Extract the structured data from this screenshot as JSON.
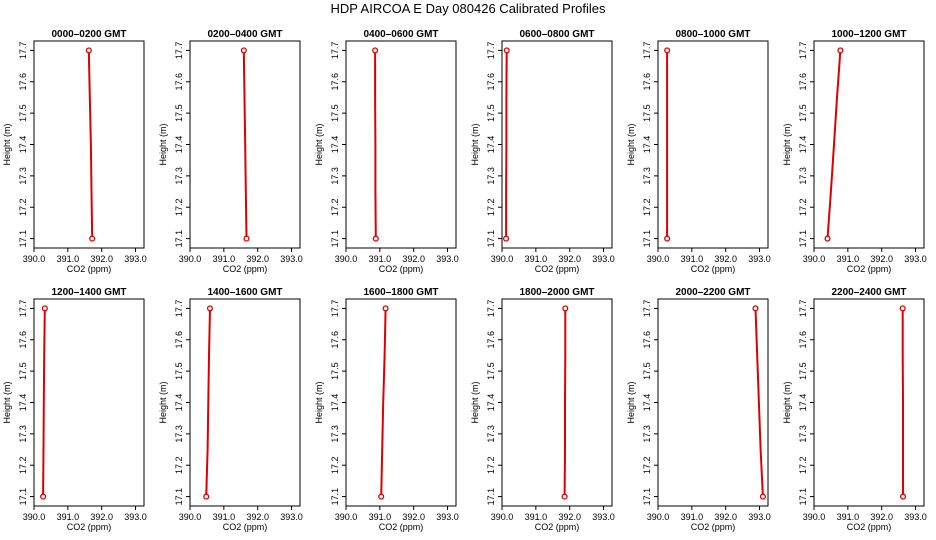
{
  "title": "HDP  AIRCOA E   Day 080426   Calibrated Profiles",
  "colors": {
    "series": "#dd0000",
    "axis": "#000000"
  },
  "chart_data": [
    {
      "type": "line",
      "title": "0000–0200 GMT",
      "xlabel": "CO2 (ppm)",
      "ylabel": "Height (m)",
      "x_ticks": [
        "390.0",
        "391.0",
        "392.0",
        "393.0"
      ],
      "y_ticks": [
        "17.1",
        "17.2",
        "17.3",
        "17.4",
        "17.5",
        "17.6",
        "17.7"
      ],
      "xlim": [
        390.0,
        393.25
      ],
      "ylim": [
        17.07,
        17.73
      ],
      "series": [
        {
          "x": [
            391.62,
            391.65,
            391.68,
            391.7,
            391.72
          ],
          "y": [
            17.7,
            17.55,
            17.4,
            17.25,
            17.1
          ]
        }
      ]
    },
    {
      "type": "line",
      "title": "0200–0400 GMT",
      "xlabel": "CO2 (ppm)",
      "ylabel": "Height (m)",
      "x_ticks": [
        "390.0",
        "391.0",
        "392.0",
        "393.0"
      ],
      "y_ticks": [
        "17.1",
        "17.2",
        "17.3",
        "17.4",
        "17.5",
        "17.6",
        "17.7"
      ],
      "xlim": [
        390.0,
        393.25
      ],
      "ylim": [
        17.07,
        17.73
      ],
      "series": [
        {
          "x": [
            391.59,
            391.61,
            391.63,
            391.65,
            391.67
          ],
          "y": [
            17.7,
            17.55,
            17.4,
            17.25,
            17.1
          ]
        }
      ]
    },
    {
      "type": "line",
      "title": "0400–0600 GMT",
      "xlabel": "CO2 (ppm)",
      "ylabel": "Height (m)",
      "x_ticks": [
        "390.0",
        "391.0",
        "392.0",
        "393.0"
      ],
      "y_ticks": [
        "17.1",
        "17.2",
        "17.3",
        "17.4",
        "17.5",
        "17.6",
        "17.7"
      ],
      "xlim": [
        390.0,
        393.25
      ],
      "ylim": [
        17.07,
        17.73
      ],
      "series": [
        {
          "x": [
            390.86,
            390.86,
            390.87,
            390.87,
            390.88
          ],
          "y": [
            17.7,
            17.55,
            17.4,
            17.25,
            17.1
          ]
        }
      ]
    },
    {
      "type": "line",
      "title": "0600–0800 GMT",
      "xlabel": "CO2 (ppm)",
      "ylabel": "Height (m)",
      "x_ticks": [
        "390.0",
        "391.0",
        "392.0",
        "393.0"
      ],
      "y_ticks": [
        "17.1",
        "17.2",
        "17.3",
        "17.4",
        "17.5",
        "17.6",
        "17.7"
      ],
      "xlim": [
        390.0,
        393.25
      ],
      "ylim": [
        17.07,
        17.73
      ],
      "series": [
        {
          "x": [
            390.14,
            390.13,
            390.13,
            390.12,
            390.12
          ],
          "y": [
            17.7,
            17.55,
            17.4,
            17.25,
            17.1
          ]
        }
      ]
    },
    {
      "type": "line",
      "title": "0800–1000 GMT",
      "xlabel": "CO2 (ppm)",
      "ylabel": "Height (m)",
      "x_ticks": [
        "390.0",
        "391.0",
        "392.0",
        "393.0"
      ],
      "y_ticks": [
        "17.1",
        "17.2",
        "17.3",
        "17.4",
        "17.5",
        "17.6",
        "17.7"
      ],
      "xlim": [
        390.0,
        393.25
      ],
      "ylim": [
        17.07,
        17.73
      ],
      "series": [
        {
          "x": [
            390.27,
            390.27,
            390.27,
            390.27,
            390.27
          ],
          "y": [
            17.7,
            17.55,
            17.4,
            17.25,
            17.1
          ]
        }
      ]
    },
    {
      "type": "line",
      "title": "1000–1200 GMT",
      "xlabel": "CO2 (ppm)",
      "ylabel": "Height (m)",
      "x_ticks": [
        "390.0",
        "391.0",
        "392.0",
        "393.0"
      ],
      "y_ticks": [
        "17.1",
        "17.2",
        "17.3",
        "17.4",
        "17.5",
        "17.6",
        "17.7"
      ],
      "xlim": [
        390.0,
        393.25
      ],
      "ylim": [
        17.07,
        17.73
      ],
      "series": [
        {
          "x": [
            390.78,
            390.68,
            390.59,
            390.5,
            390.4
          ],
          "y": [
            17.7,
            17.55,
            17.4,
            17.25,
            17.1
          ]
        }
      ]
    },
    {
      "type": "line",
      "title": "1200–1400 GMT",
      "xlabel": "CO2 (ppm)",
      "ylabel": "Height (m)",
      "x_ticks": [
        "390.0",
        "391.0",
        "392.0",
        "393.0"
      ],
      "y_ticks": [
        "17.1",
        "17.2",
        "17.3",
        "17.4",
        "17.5",
        "17.6",
        "17.7"
      ],
      "xlim": [
        390.0,
        393.25
      ],
      "ylim": [
        17.07,
        17.73
      ],
      "series": [
        {
          "x": [
            390.32,
            390.3,
            390.29,
            390.28,
            390.27
          ],
          "y": [
            17.7,
            17.55,
            17.4,
            17.25,
            17.1
          ]
        }
      ]
    },
    {
      "type": "line",
      "title": "1400–1600 GMT",
      "xlabel": "CO2 (ppm)",
      "ylabel": "Height (m)",
      "x_ticks": [
        "390.0",
        "391.0",
        "392.0",
        "393.0"
      ],
      "y_ticks": [
        "17.1",
        "17.2",
        "17.3",
        "17.4",
        "17.5",
        "17.6",
        "17.7"
      ],
      "xlim": [
        390.0,
        393.25
      ],
      "ylim": [
        17.07,
        17.73
      ],
      "series": [
        {
          "x": [
            390.59,
            390.56,
            390.54,
            390.52,
            390.48
          ],
          "y": [
            17.7,
            17.55,
            17.4,
            17.25,
            17.1
          ]
        }
      ]
    },
    {
      "type": "line",
      "title": "1600–1800 GMT",
      "xlabel": "CO2 (ppm)",
      "ylabel": "Height (m)",
      "x_ticks": [
        "390.0",
        "391.0",
        "392.0",
        "393.0"
      ],
      "y_ticks": [
        "17.1",
        "17.2",
        "17.3",
        "17.4",
        "17.5",
        "17.6",
        "17.7"
      ],
      "xlim": [
        390.0,
        393.25
      ],
      "ylim": [
        17.07,
        17.73
      ],
      "series": [
        {
          "x": [
            391.17,
            391.14,
            391.1,
            391.07,
            391.04
          ],
          "y": [
            17.7,
            17.55,
            17.4,
            17.25,
            17.1
          ]
        }
      ]
    },
    {
      "type": "line",
      "title": "1800–2000 GMT",
      "xlabel": "CO2 (ppm)",
      "ylabel": "Height (m)",
      "x_ticks": [
        "390.0",
        "391.0",
        "392.0",
        "393.0"
      ],
      "y_ticks": [
        "17.1",
        "17.2",
        "17.3",
        "17.4",
        "17.5",
        "17.6",
        "17.7"
      ],
      "xlim": [
        390.0,
        393.25
      ],
      "ylim": [
        17.07,
        17.73
      ],
      "series": [
        {
          "x": [
            391.87,
            391.87,
            391.86,
            391.86,
            391.85
          ],
          "y": [
            17.7,
            17.55,
            17.4,
            17.25,
            17.1
          ]
        }
      ]
    },
    {
      "type": "line",
      "title": "2000–2200 GMT",
      "xlabel": "CO2 (ppm)",
      "ylabel": "Height (m)",
      "x_ticks": [
        "390.0",
        "391.0",
        "392.0",
        "393.0"
      ],
      "y_ticks": [
        "17.1",
        "17.2",
        "17.3",
        "17.4",
        "17.5",
        "17.6",
        "17.7"
      ],
      "xlim": [
        390.0,
        393.25
      ],
      "ylim": [
        17.07,
        17.73
      ],
      "series": [
        {
          "x": [
            392.88,
            392.93,
            392.98,
            393.03,
            393.1
          ],
          "y": [
            17.7,
            17.55,
            17.4,
            17.25,
            17.1
          ]
        }
      ]
    },
    {
      "type": "line",
      "title": "2200–2400 GMT",
      "xlabel": "CO2 (ppm)",
      "ylabel": "Height (m)",
      "x_ticks": [
        "390.0",
        "391.0",
        "392.0",
        "393.0"
      ],
      "y_ticks": [
        "17.1",
        "17.2",
        "17.3",
        "17.4",
        "17.5",
        "17.6",
        "17.7"
      ],
      "xlim": [
        390.0,
        393.25
      ],
      "ylim": [
        17.07,
        17.73
      ],
      "series": [
        {
          "x": [
            392.62,
            392.62,
            392.63,
            392.63,
            392.63
          ],
          "y": [
            17.7,
            17.55,
            17.4,
            17.25,
            17.1
          ]
        }
      ]
    }
  ]
}
